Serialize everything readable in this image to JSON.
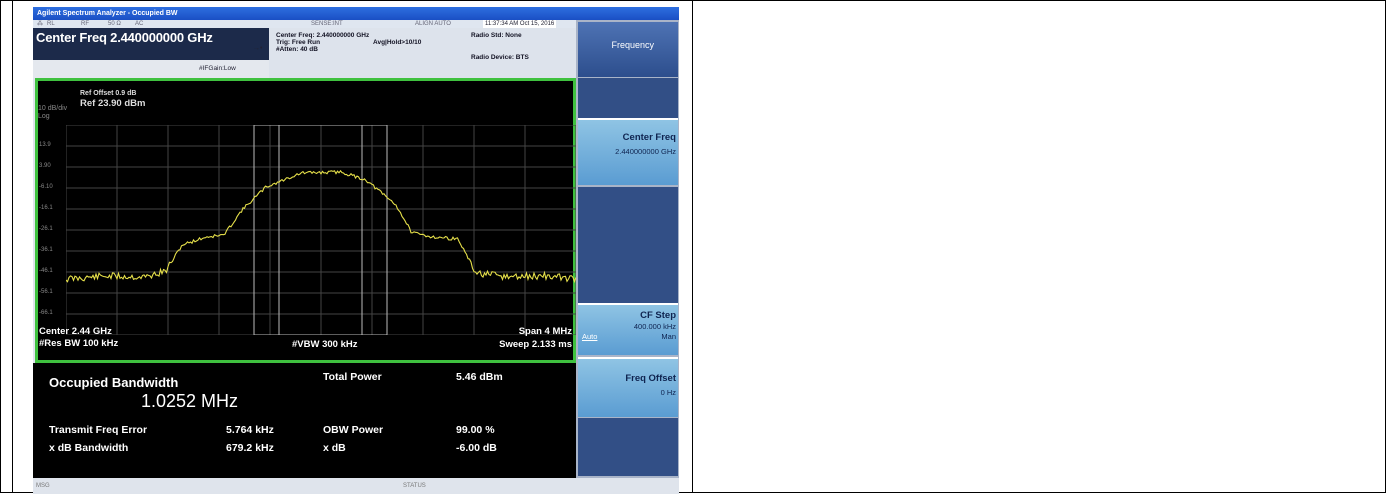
{
  "window": {
    "title": "Agilent Spectrum Analyzer - Occupied BW"
  },
  "status_strip": {
    "rl": "RL",
    "rf": "RF",
    "ohm": "50 Ω",
    "ac": "AC",
    "sense": "SENSE:INT",
    "align": "ALIGN AUTO",
    "time": "11:37:34 AM Oct 15, 2016"
  },
  "header": {
    "center_freq": "Center Freq 2.440000000 GHz",
    "if_gain": "#IFGain:Low",
    "center_freq_info": "Center Freq: 2.440000000 GHz",
    "trig": "Trig: Free Run",
    "atten": "#Atten: 40 dB",
    "avg_hold": "Avg|Hold>10/10",
    "radio_std": "Radio Std: None",
    "radio_device": "Radio Device: BTS"
  },
  "plot": {
    "ref_offset": "Ref Offset 0.9 dB",
    "ref_level": "Ref 23.90 dBm",
    "scale": "10 dB/div",
    "log": "Log",
    "y_ticks": [
      "13.9",
      "3.90",
      "-6.10",
      "-16.1",
      "-26.1",
      "-36.1",
      "-46.1",
      "-56.1",
      "-66.1"
    ],
    "center": "Center 2.44 GHz",
    "span": "Span 4 MHz",
    "res_bw": "#Res BW 100 kHz",
    "vbw": "#VBW 300 kHz",
    "sweep": "Sweep 2.133 ms",
    "trace_color": "#e6e04a",
    "grid_color": "#444444"
  },
  "results": {
    "obw_label": "Occupied Bandwidth",
    "obw_value": "1.0252 MHz",
    "total_power_label": "Total Power",
    "total_power_value": "5.46 dBm",
    "tfe_label": "Transmit Freq Error",
    "tfe_value": "5.764 kHz",
    "obw_power_label": "OBW Power",
    "obw_power_value": "99.00 %",
    "xdb_bw_label": "x dB Bandwidth",
    "xdb_bw_value": "679.2 kHz",
    "xdb_label": "x dB",
    "xdb_value": "-6.00 dB"
  },
  "softkeys": {
    "menu_title": "Frequency",
    "center_freq_label": "Center Freq",
    "center_freq_value": "2.440000000 GHz",
    "cf_step_label": "CF Step",
    "cf_step_value": "400.000 kHz",
    "cf_step_auto": "Auto",
    "cf_step_man": "Man",
    "freq_offset_label": "Freq Offset",
    "freq_offset_value": "0 Hz"
  },
  "msgbar": {
    "msg": "MSG",
    "status": "STATUS"
  }
}
